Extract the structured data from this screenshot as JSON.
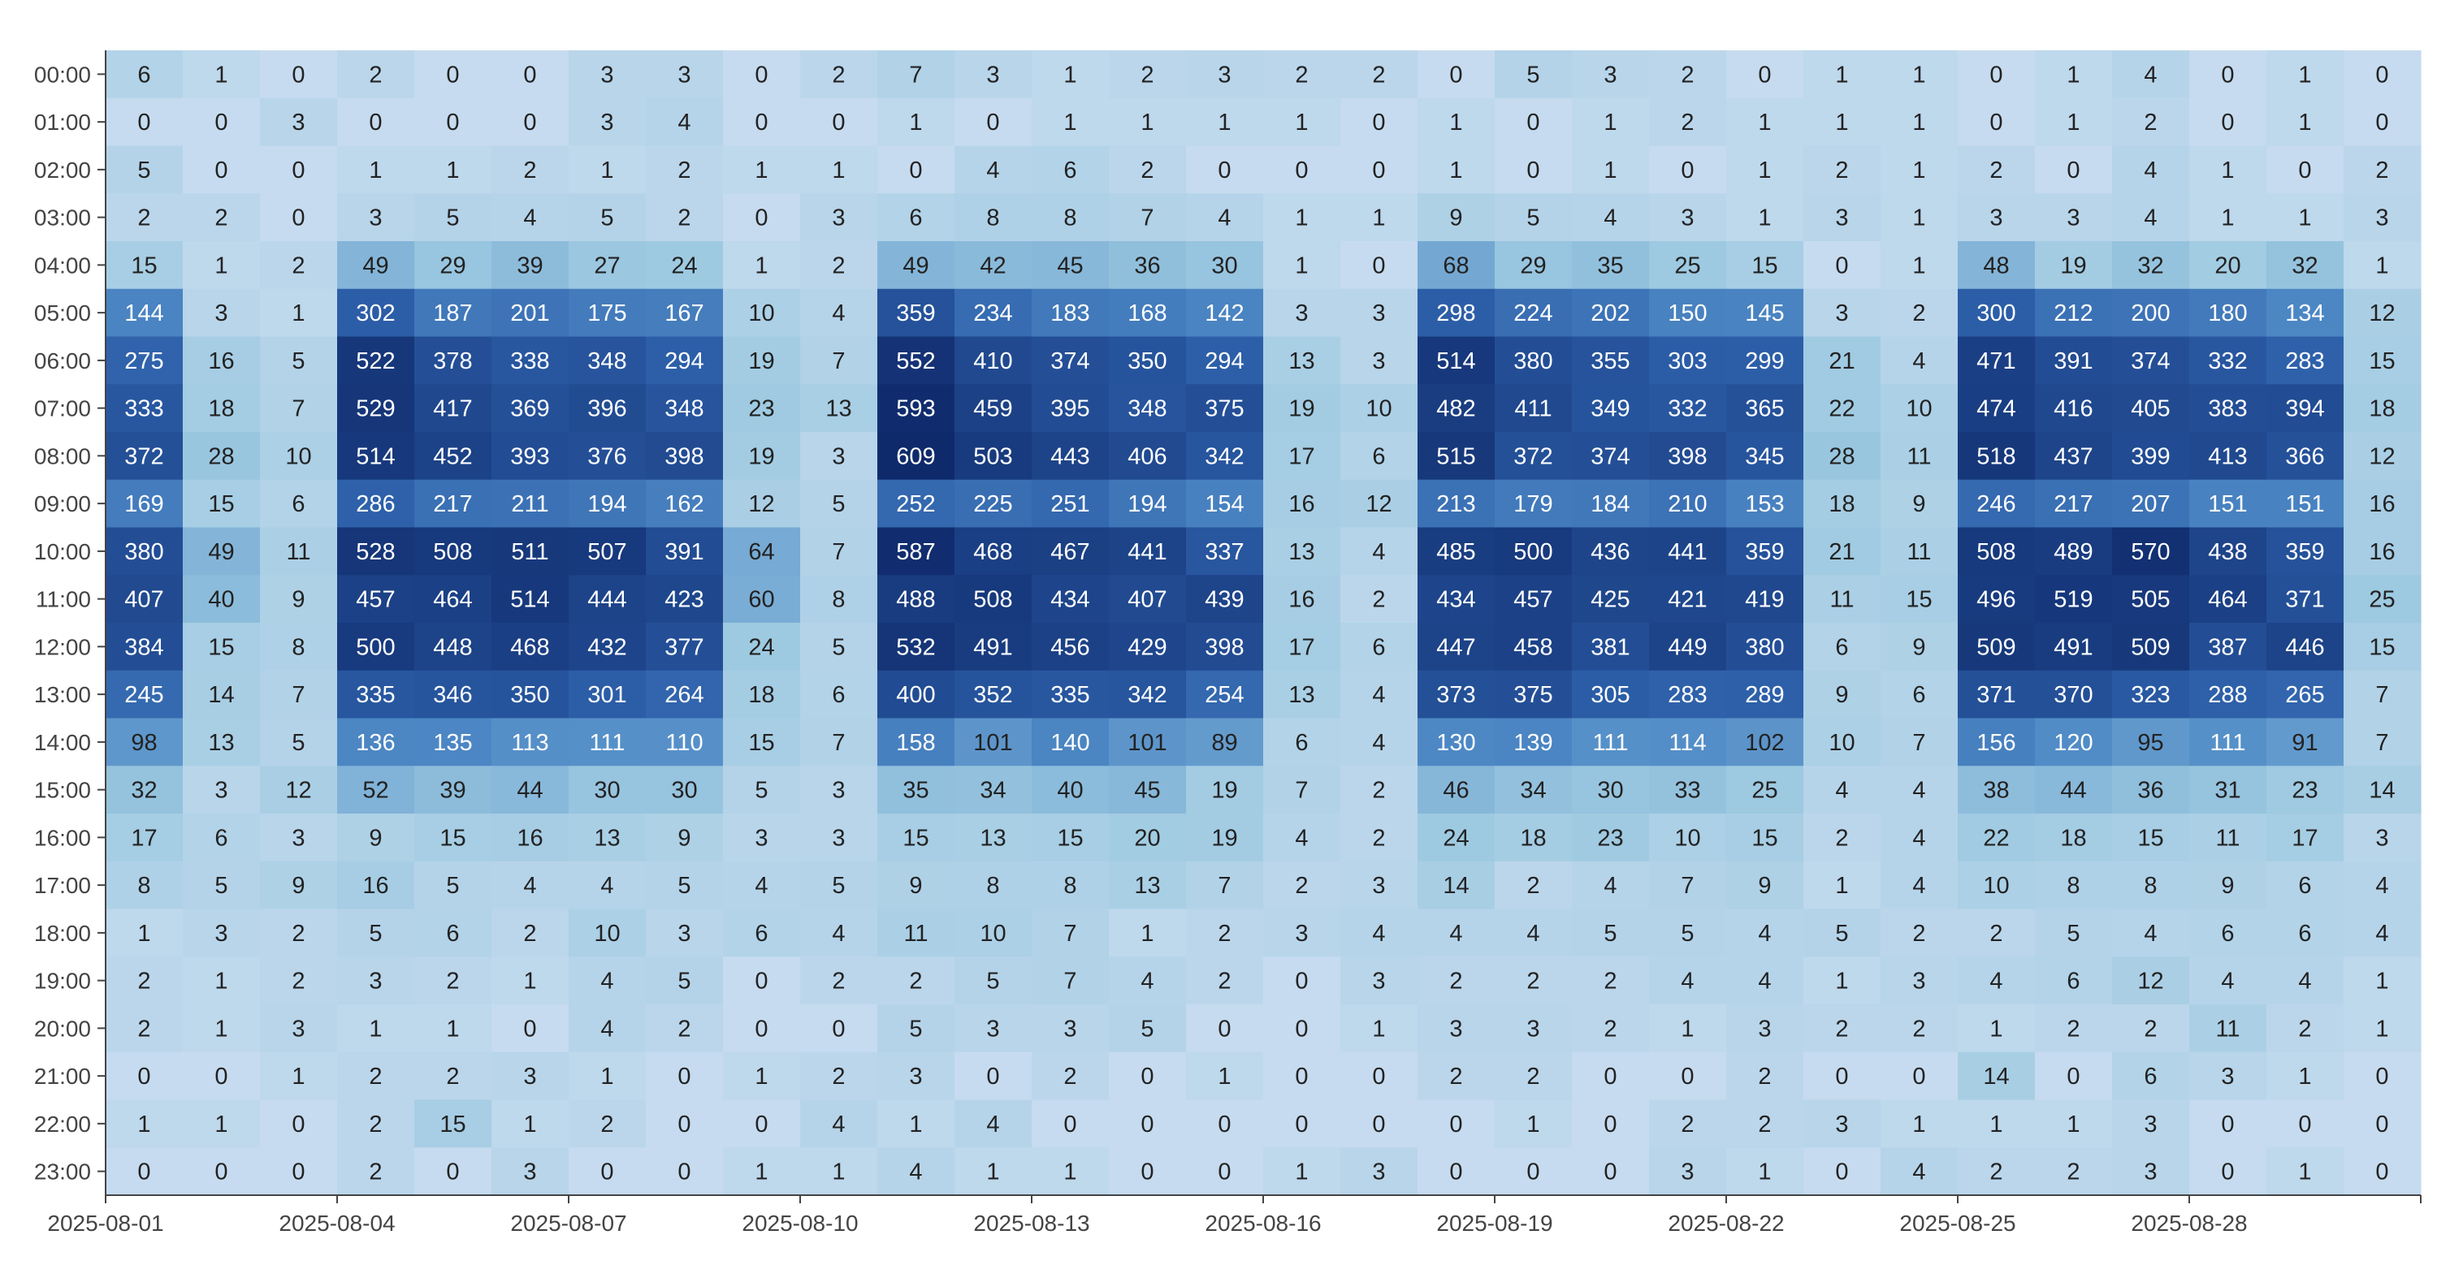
{
  "chart_data": {
    "type": "heatmap",
    "title": "",
    "xlabel": "",
    "ylabel": "",
    "x_tick_labels": [
      "2025-08-01",
      "2025-08-04",
      "2025-08-07",
      "2025-08-10",
      "2025-08-13",
      "2025-08-16",
      "2025-08-19",
      "2025-08-22",
      "2025-08-25",
      "2025-08-28"
    ],
    "x_tick_dates": [
      "2025-08-01",
      "2025-08-04",
      "2025-08-07",
      "2025-08-10",
      "2025-08-13",
      "2025-08-16",
      "2025-08-19",
      "2025-08-22",
      "2025-08-25",
      "2025-08-28"
    ],
    "columns": [
      "2025-08-01",
      "2025-08-02",
      "2025-08-03",
      "2025-08-04",
      "2025-08-05",
      "2025-08-06",
      "2025-08-07",
      "2025-08-08",
      "2025-08-09",
      "2025-08-10",
      "2025-08-11",
      "2025-08-12",
      "2025-08-13",
      "2025-08-14",
      "2025-08-15",
      "2025-08-16",
      "2025-08-17",
      "2025-08-18",
      "2025-08-19",
      "2025-08-20",
      "2025-08-21",
      "2025-08-22",
      "2025-08-23",
      "2025-08-24",
      "2025-08-25",
      "2025-08-26",
      "2025-08-27",
      "2025-08-28",
      "2025-08-29",
      "2025-08-30"
    ],
    "rows": [
      "00:00",
      "01:00",
      "02:00",
      "03:00",
      "04:00",
      "05:00",
      "06:00",
      "07:00",
      "08:00",
      "09:00",
      "10:00",
      "11:00",
      "12:00",
      "13:00",
      "14:00",
      "15:00",
      "16:00",
      "17:00",
      "18:00",
      "19:00",
      "20:00",
      "21:00",
      "22:00",
      "23:00"
    ],
    "values": [
      [
        6,
        1,
        0,
        2,
        0,
        0,
        3,
        3,
        0,
        2,
        7,
        3,
        1,
        2,
        3,
        2,
        2,
        0,
        5,
        3,
        2,
        0,
        1,
        1,
        0,
        1,
        4,
        0,
        1,
        0
      ],
      [
        0,
        0,
        3,
        0,
        0,
        0,
        3,
        4,
        0,
        0,
        1,
        0,
        1,
        1,
        1,
        1,
        0,
        1,
        0,
        1,
        2,
        1,
        1,
        1,
        0,
        1,
        2,
        0,
        1,
        0
      ],
      [
        5,
        0,
        0,
        1,
        1,
        2,
        1,
        2,
        1,
        1,
        0,
        4,
        6,
        2,
        0,
        0,
        0,
        1,
        0,
        1,
        0,
        1,
        2,
        1,
        2,
        0,
        4,
        1,
        0,
        2
      ],
      [
        2,
        2,
        0,
        3,
        5,
        4,
        5,
        2,
        0,
        3,
        6,
        8,
        8,
        7,
        4,
        1,
        1,
        9,
        5,
        4,
        3,
        1,
        3,
        1,
        3,
        3,
        4,
        1,
        1,
        3
      ],
      [
        15,
        1,
        2,
        49,
        29,
        39,
        27,
        24,
        1,
        2,
        49,
        42,
        45,
        36,
        30,
        1,
        0,
        68,
        29,
        35,
        25,
        15,
        0,
        1,
        48,
        19,
        32,
        20,
        32,
        1
      ],
      [
        144,
        3,
        1,
        302,
        187,
        201,
        175,
        167,
        10,
        4,
        359,
        234,
        183,
        168,
        142,
        3,
        3,
        298,
        224,
        202,
        150,
        145,
        3,
        2,
        300,
        212,
        200,
        180,
        134,
        12
      ],
      [
        275,
        16,
        5,
        522,
        378,
        338,
        348,
        294,
        19,
        7,
        552,
        410,
        374,
        350,
        294,
        13,
        3,
        514,
        380,
        355,
        303,
        299,
        21,
        4,
        471,
        391,
        374,
        332,
        283,
        15
      ],
      [
        333,
        18,
        7,
        529,
        417,
        369,
        396,
        348,
        23,
        13,
        593,
        459,
        395,
        348,
        375,
        19,
        10,
        482,
        411,
        349,
        332,
        365,
        22,
        10,
        474,
        416,
        405,
        383,
        394,
        18
      ],
      [
        372,
        28,
        10,
        514,
        452,
        393,
        376,
        398,
        19,
        3,
        609,
        503,
        443,
        406,
        342,
        17,
        6,
        515,
        372,
        374,
        398,
        345,
        28,
        11,
        518,
        437,
        399,
        413,
        366,
        12
      ],
      [
        169,
        15,
        6,
        286,
        217,
        211,
        194,
        162,
        12,
        5,
        252,
        225,
        251,
        194,
        154,
        16,
        12,
        213,
        179,
        184,
        210,
        153,
        18,
        9,
        246,
        217,
        207,
        151,
        151,
        16
      ],
      [
        380,
        49,
        11,
        528,
        508,
        511,
        507,
        391,
        64,
        7,
        587,
        468,
        467,
        441,
        337,
        13,
        4,
        485,
        500,
        436,
        441,
        359,
        21,
        11,
        508,
        489,
        570,
        438,
        359,
        16
      ],
      [
        407,
        40,
        9,
        457,
        464,
        514,
        444,
        423,
        60,
        8,
        488,
        508,
        434,
        407,
        439,
        16,
        2,
        434,
        457,
        425,
        421,
        419,
        11,
        15,
        496,
        519,
        505,
        464,
        371,
        25
      ],
      [
        384,
        15,
        8,
        500,
        448,
        468,
        432,
        377,
        24,
        5,
        532,
        491,
        456,
        429,
        398,
        17,
        6,
        447,
        458,
        381,
        449,
        380,
        6,
        9,
        509,
        491,
        509,
        387,
        446,
        15
      ],
      [
        245,
        14,
        7,
        335,
        346,
        350,
        301,
        264,
        18,
        6,
        400,
        352,
        335,
        342,
        254,
        13,
        4,
        373,
        375,
        305,
        283,
        289,
        9,
        6,
        371,
        370,
        323,
        288,
        265,
        7
      ],
      [
        98,
        13,
        5,
        136,
        135,
        113,
        111,
        110,
        15,
        7,
        158,
        101,
        140,
        101,
        89,
        6,
        4,
        130,
        139,
        111,
        114,
        102,
        10,
        7,
        156,
        120,
        95,
        111,
        91,
        7
      ],
      [
        32,
        3,
        12,
        52,
        39,
        44,
        30,
        30,
        5,
        3,
        35,
        34,
        40,
        45,
        19,
        7,
        2,
        46,
        34,
        30,
        33,
        25,
        4,
        4,
        38,
        44,
        36,
        31,
        23,
        14
      ],
      [
        17,
        6,
        3,
        9,
        15,
        16,
        13,
        9,
        3,
        3,
        15,
        13,
        15,
        20,
        19,
        4,
        2,
        24,
        18,
        23,
        10,
        15,
        2,
        4,
        22,
        18,
        15,
        11,
        17,
        3
      ],
      [
        8,
        5,
        9,
        16,
        5,
        4,
        4,
        5,
        4,
        5,
        9,
        8,
        8,
        13,
        7,
        2,
        3,
        14,
        2,
        4,
        7,
        9,
        1,
        4,
        10,
        8,
        8,
        9,
        6,
        4
      ],
      [
        1,
        3,
        2,
        5,
        6,
        2,
        10,
        3,
        6,
        4,
        11,
        10,
        7,
        1,
        2,
        3,
        4,
        4,
        4,
        5,
        5,
        4,
        5,
        2,
        2,
        5,
        4,
        6,
        6,
        4
      ],
      [
        2,
        1,
        2,
        3,
        2,
        1,
        4,
        5,
        0,
        2,
        2,
        5,
        7,
        4,
        2,
        0,
        3,
        2,
        2,
        2,
        4,
        4,
        1,
        3,
        4,
        6,
        12,
        4,
        4,
        1
      ],
      [
        2,
        1,
        3,
        1,
        1,
        0,
        4,
        2,
        0,
        0,
        5,
        3,
        3,
        5,
        0,
        0,
        1,
        3,
        3,
        2,
        1,
        3,
        2,
        2,
        1,
        2,
        2,
        11,
        2,
        1
      ],
      [
        0,
        0,
        1,
        2,
        2,
        3,
        1,
        0,
        1,
        2,
        3,
        0,
        2,
        0,
        1,
        0,
        0,
        2,
        2,
        0,
        0,
        2,
        0,
        0,
        14,
        0,
        6,
        3,
        1,
        0
      ],
      [
        1,
        1,
        0,
        2,
        15,
        1,
        2,
        0,
        0,
        4,
        1,
        4,
        0,
        0,
        0,
        0,
        0,
        0,
        1,
        0,
        2,
        2,
        3,
        1,
        1,
        1,
        3,
        0,
        0,
        0
      ],
      [
        0,
        0,
        0,
        2,
        0,
        3,
        0,
        0,
        1,
        1,
        4,
        1,
        1,
        0,
        0,
        1,
        3,
        0,
        0,
        0,
        3,
        1,
        0,
        4,
        2,
        2,
        3,
        0,
        1,
        0
      ]
    ],
    "color_scale": "sqrt",
    "colors": {
      "low": "#c6dbef",
      "mid_low": "#9ecae1",
      "mid": "#4f8ac6",
      "mid_high": "#2c5ea8",
      "high": "#0f2a6b",
      "text_dark": "#222222",
      "text_light": "#ffffff",
      "axis": "#444444"
    },
    "value_range": [
      0,
      609
    ],
    "grid": false,
    "legend": "none"
  }
}
